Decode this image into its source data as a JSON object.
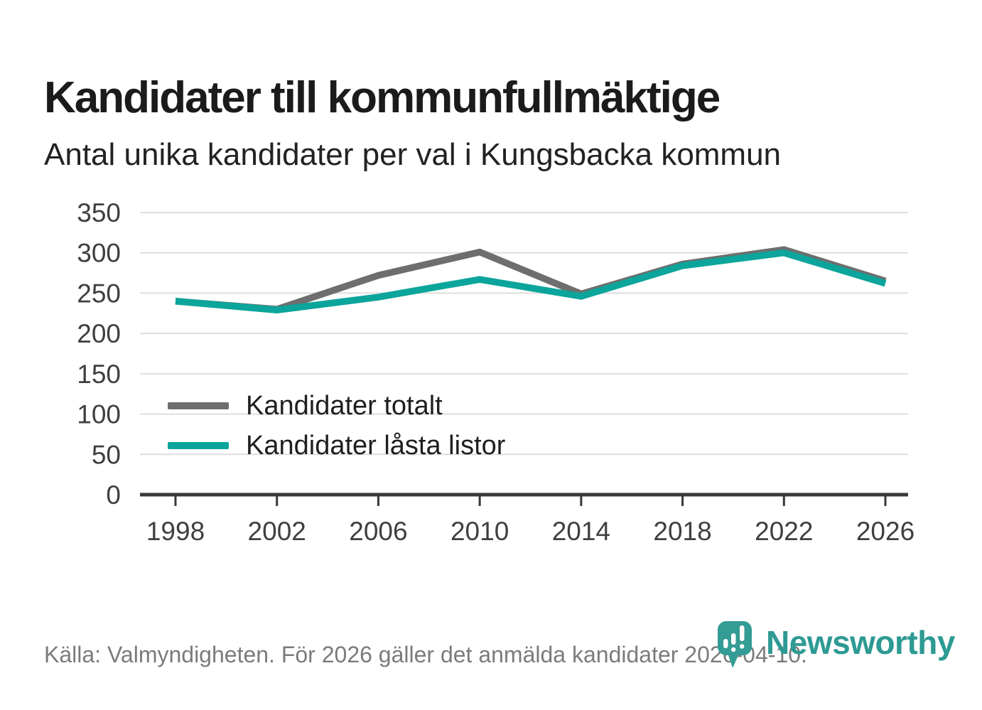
{
  "header": {
    "title": "Kandidater till kommunfullmäktige",
    "subtitle": "Antal unika kandidater per val i Kungsbacka kommun"
  },
  "chart_data": {
    "type": "line",
    "categories": [
      "1998",
      "2002",
      "2006",
      "2010",
      "2014",
      "2018",
      "2022",
      "2026"
    ],
    "series": [
      {
        "name": "Kandidater totalt",
        "color": "#6e6e6e",
        "values": [
          240,
          230,
          272,
          301,
          249,
          286,
          304,
          265
        ]
      },
      {
        "name": "Kandidater låsta listor",
        "color": "#0ba59b",
        "values": [
          240,
          229,
          245,
          267,
          246,
          284,
          300,
          262
        ]
      }
    ],
    "xlabel": "",
    "ylabel": "",
    "ylim": [
      0,
      350
    ],
    "yticks": [
      0,
      50,
      100,
      150,
      200,
      250,
      300,
      350
    ],
    "grid": "horizontal",
    "legend_position": "inside-bottom-left",
    "axis_color": "#383838",
    "gridline_color": "#dedede"
  },
  "footer": {
    "source_text": "Källa: Valmyndigheten. För 2026 gäller det anmälda kandidater 2026-04-10.",
    "logo_text": "Newsworthy",
    "logo_color": "#2d9a93",
    "logo_icon_color": "#339c94"
  }
}
